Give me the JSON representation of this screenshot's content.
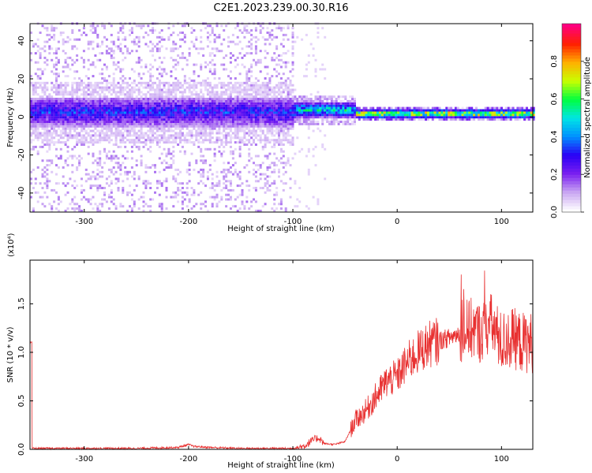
{
  "title": "C2E1.2023.239.00.30.R16",
  "chart_data": [
    {
      "type": "heatmap",
      "xlabel": "Height of straight line (km)",
      "ylabel": "Frequency (Hz)",
      "xlim": [
        -352,
        130
      ],
      "ylim": [
        -50,
        49
      ],
      "xticks": [
        -300,
        -200,
        -100,
        0,
        100
      ],
      "yticks": [
        -40,
        -20,
        0,
        20,
        40
      ],
      "colorbar": {
        "label": "Normalized spectral amplitude",
        "range": [
          0.0,
          1.0
        ],
        "ticks": [
          "0.0",
          "0.2",
          "0.4",
          "0.6",
          "0.8"
        ],
        "colormap": [
          "#ffffff",
          "#c9a6f2",
          "#7a1ff0",
          "#2a00f5",
          "#0090ff",
          "#00e5e5",
          "#00ff40",
          "#c8ff00",
          "#ffb000",
          "#ff2000",
          "#ff007f"
        ]
      },
      "bands": [
        {
          "x": [
            -352,
            -100
          ],
          "center": 2,
          "halfwidth": 8,
          "peak": 0.35,
          "noise": "scattered -50..49"
        },
        {
          "x": [
            -100,
            -40
          ],
          "center": 3,
          "halfwidth": 4,
          "peak": 0.55
        },
        {
          "x": [
            -40,
            130
          ],
          "center": 1,
          "halfwidth": 2,
          "peak": 0.85
        }
      ]
    },
    {
      "type": "line",
      "xlabel": "Height of straight line (km)",
      "ylabel": "SNR (10 * v/v)",
      "yscale_label": "(x10⁴)",
      "xlim": [
        -352,
        130
      ],
      "ylim": [
        0.0,
        1.95
      ],
      "xticks": [
        -300,
        -200,
        -100,
        0,
        100
      ],
      "yticks": [
        "0.0",
        "0.5",
        "1.0",
        "1.5"
      ],
      "color": "#e83030",
      "series": [
        {
          "x": [
            -350,
            -300,
            -250,
            -210,
            -200,
            -195,
            -180,
            -150,
            -120,
            -100,
            -90,
            -80,
            -75,
            -70,
            -60,
            -50,
            -40,
            -30,
            -20,
            -10,
            0,
            10,
            20,
            30,
            40,
            50,
            60,
            70,
            80,
            90,
            100,
            110,
            120,
            130
          ],
          "y": [
            0.01,
            0.01,
            0.01,
            0.02,
            0.05,
            0.03,
            0.02,
            0.01,
            0.01,
            0.01,
            0.03,
            0.1,
            0.12,
            0.06,
            0.05,
            0.08,
            0.3,
            0.4,
            0.55,
            0.7,
            0.75,
            0.9,
            1.0,
            1.08,
            1.12,
            1.15,
            1.2,
            1.25,
            1.2,
            1.3,
            1.1,
            1.15,
            1.1,
            1.1
          ]
        }
      ]
    }
  ]
}
